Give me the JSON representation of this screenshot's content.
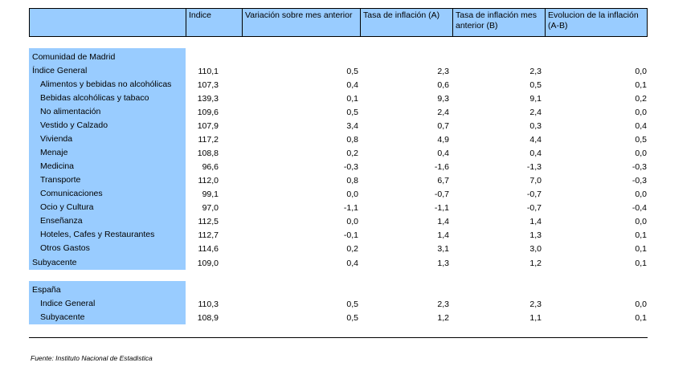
{
  "header": {
    "columns": [
      "",
      "Indice",
      "Variación sobre mes anterior",
      "Tasa de inflación (A)",
      "Tasa de inflación mes anterior (B)",
      "Evolucion de la inflación (A-B)"
    ]
  },
  "sections": [
    {
      "title": "Comunidad de Madrid",
      "rows": [
        {
          "label": "Índice General",
          "indent": 0,
          "values": [
            "110,1",
            "0,5",
            "2,3",
            "2,3",
            "0,0"
          ]
        },
        {
          "label": "Alimentos y bebidas no alcohólicas",
          "indent": 1,
          "values": [
            "107,3",
            "0,4",
            "0,6",
            "0,5",
            "0,1"
          ]
        },
        {
          "label": "Bebidas alcohólicas y tabaco",
          "indent": 1,
          "values": [
            "139,3",
            "0,1",
            "9,3",
            "9,1",
            "0,2"
          ]
        },
        {
          "label": "No alimentación",
          "indent": 1,
          "values": [
            "109,6",
            "0,5",
            "2,4",
            "2,4",
            "0,0"
          ]
        },
        {
          "label": "Vestido y Calzado",
          "indent": 1,
          "values": [
            "107,9",
            "3,4",
            "0,7",
            "0,3",
            "0,4"
          ]
        },
        {
          "label": "Vivienda",
          "indent": 1,
          "values": [
            "117,2",
            "0,8",
            "4,9",
            "4,4",
            "0,5"
          ]
        },
        {
          "label": "Menaje",
          "indent": 1,
          "values": [
            "108,8",
            "0,2",
            "0,4",
            "0,4",
            "0,0"
          ]
        },
        {
          "label": "Medicina",
          "indent": 1,
          "values": [
            "96,6",
            "-0,3",
            "-1,6",
            "-1,3",
            "-0,3"
          ]
        },
        {
          "label": "Transporte",
          "indent": 1,
          "values": [
            "112,0",
            "0,8",
            "6,7",
            "7,0",
            "-0,3"
          ]
        },
        {
          "label": "Comunicaciones",
          "indent": 1,
          "values": [
            "99,1",
            "0,0",
            "-0,7",
            "-0,7",
            "0,0"
          ]
        },
        {
          "label": "Ocio y Cultura",
          "indent": 1,
          "values": [
            "97,0",
            "-1,1",
            "-1,1",
            "-0,7",
            "-0,4"
          ]
        },
        {
          "label": "Enseñanza",
          "indent": 1,
          "values": [
            "112,5",
            "0,0",
            "1,4",
            "1,4",
            "0,0"
          ]
        },
        {
          "label": "Hoteles, Cafes y Restaurantes",
          "indent": 1,
          "values": [
            "112,7",
            "-0,1",
            "1,4",
            "1,3",
            "0,1"
          ]
        },
        {
          "label": "Otros Gastos",
          "indent": 1,
          "values": [
            "114,6",
            "0,2",
            "3,1",
            "3,0",
            "0,1"
          ]
        },
        {
          "label": "Subyacente",
          "indent": 0,
          "values": [
            "109,0",
            "0,4",
            "1,3",
            "1,2",
            "0,1"
          ]
        }
      ]
    },
    {
      "title": "España",
      "rows": [
        {
          "label": "Indice General",
          "indent": 2,
          "values": [
            "110,3",
            "0,5",
            "2,3",
            "2,3",
            "0,0"
          ]
        },
        {
          "label": "Subyacente",
          "indent": 2,
          "values": [
            "108,9",
            "0,5",
            "1,2",
            "1,1",
            "0,1"
          ]
        }
      ]
    }
  ],
  "footer": {
    "source": "Fuente: Instituto Nacional de Estadistica"
  }
}
